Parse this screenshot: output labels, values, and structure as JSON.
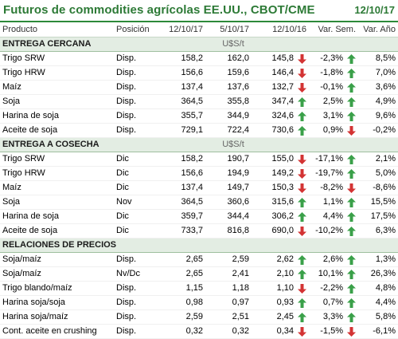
{
  "header": {
    "title": "Futuros de commodities agrícolas EE.UU., CBOT/CME",
    "date": "12/10/17"
  },
  "columns": [
    "Producto",
    "Posición",
    "12/10/17",
    "5/10/17",
    "12/10/16",
    "Var. Sem.",
    "Var. Año"
  ],
  "colors": {
    "up": "#3aa049",
    "down": "#d33333",
    "accent": "#2d7a36"
  },
  "sections": [
    {
      "title": "ENTREGA CERCANA",
      "unit": "U$S/t",
      "rows": [
        {
          "product": "Trigo SRW",
          "position": "Disp.",
          "c1": "158,2",
          "c2": "162,0",
          "c3": "145,8",
          "a3": "down",
          "wk": "-2,3%",
          "awk": "up",
          "yr": "8,5%"
        },
        {
          "product": "Trigo HRW",
          "position": "Disp.",
          "c1": "156,6",
          "c2": "159,6",
          "c3": "146,4",
          "a3": "down",
          "wk": "-1,8%",
          "awk": "up",
          "yr": "7,0%"
        },
        {
          "product": "Maíz",
          "position": "Disp.",
          "c1": "137,4",
          "c2": "137,6",
          "c3": "132,7",
          "a3": "down",
          "wk": "-0,1%",
          "awk": "up",
          "yr": "3,6%"
        },
        {
          "product": "Soja",
          "position": "Disp.",
          "c1": "364,5",
          "c2": "355,8",
          "c3": "347,4",
          "a3": "up",
          "wk": "2,5%",
          "awk": "up",
          "yr": "4,9%"
        },
        {
          "product": "Harina de soja",
          "position": "Disp.",
          "c1": "355,7",
          "c2": "344,9",
          "c3": "324,6",
          "a3": "up",
          "wk": "3,1%",
          "awk": "up",
          "yr": "9,6%"
        },
        {
          "product": "Aceite de soja",
          "position": "Disp.",
          "c1": "729,1",
          "c2": "722,4",
          "c3": "730,6",
          "a3": "up",
          "wk": "0,9%",
          "awk": "down",
          "yr": "-0,2%"
        }
      ]
    },
    {
      "title": "ENTREGA A COSECHA",
      "unit": "U$S/t",
      "rows": [
        {
          "product": "Trigo SRW",
          "position": "Dic",
          "c1": "158,2",
          "c2": "190,7",
          "c3": "155,0",
          "a3": "down",
          "wk": "-17,1%",
          "awk": "up",
          "yr": "2,1%"
        },
        {
          "product": "Trigo HRW",
          "position": "Dic",
          "c1": "156,6",
          "c2": "194,9",
          "c3": "149,2",
          "a3": "down",
          "wk": "-19,7%",
          "awk": "up",
          "yr": "5,0%"
        },
        {
          "product": "Maíz",
          "position": "Dic",
          "c1": "137,4",
          "c2": "149,7",
          "c3": "150,3",
          "a3": "down",
          "wk": "-8,2%",
          "awk": "down",
          "yr": "-8,6%"
        },
        {
          "product": "Soja",
          "position": "Nov",
          "c1": "364,5",
          "c2": "360,6",
          "c3": "315,6",
          "a3": "up",
          "wk": "1,1%",
          "awk": "up",
          "yr": "15,5%"
        },
        {
          "product": "Harina de soja",
          "position": "Dic",
          "c1": "359,7",
          "c2": "344,4",
          "c3": "306,2",
          "a3": "up",
          "wk": "4,4%",
          "awk": "up",
          "yr": "17,5%"
        },
        {
          "product": "Aceite de soja",
          "position": "Dic",
          "c1": "733,7",
          "c2": "816,8",
          "c3": "690,0",
          "a3": "down",
          "wk": "-10,2%",
          "awk": "up",
          "yr": "6,3%"
        }
      ]
    },
    {
      "title": "RELACIONES DE PRECIOS",
      "unit": "",
      "rows": [
        {
          "product": "Soja/maíz",
          "position": "Disp.",
          "c1": "2,65",
          "c2": "2,59",
          "c3": "2,62",
          "a3": "up",
          "wk": "2,6%",
          "awk": "up",
          "yr": "1,3%"
        },
        {
          "product": "Soja/maíz",
          "position": "Nv/Dc",
          "c1": "2,65",
          "c2": "2,41",
          "c3": "2,10",
          "a3": "up",
          "wk": "10,1%",
          "awk": "up",
          "yr": "26,3%"
        },
        {
          "product": "Trigo blando/maíz",
          "position": "Disp.",
          "c1": "1,15",
          "c2": "1,18",
          "c3": "1,10",
          "a3": "down",
          "wk": "-2,2%",
          "awk": "up",
          "yr": "4,8%"
        },
        {
          "product": "Harina soja/soja",
          "position": "Disp.",
          "c1": "0,98",
          "c2": "0,97",
          "c3": "0,93",
          "a3": "up",
          "wk": "0,7%",
          "awk": "up",
          "yr": "4,4%"
        },
        {
          "product": "Harina soja/maíz",
          "position": "Disp.",
          "c1": "2,59",
          "c2": "2,51",
          "c3": "2,45",
          "a3": "up",
          "wk": "3,3%",
          "awk": "up",
          "yr": "5,8%"
        },
        {
          "product": "Cont. aceite en crushing",
          "position": "Disp.",
          "c1": "0,32",
          "c2": "0,32",
          "c3": "0,34",
          "a3": "down",
          "wk": "-1,5%",
          "awk": "down",
          "yr": "-6,1%"
        }
      ]
    }
  ]
}
